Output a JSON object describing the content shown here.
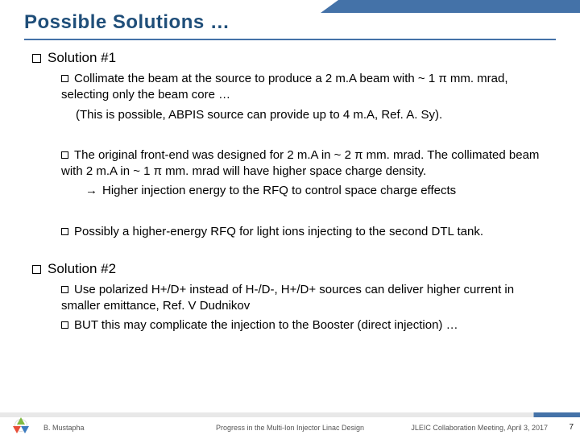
{
  "header": {
    "title": "Possible Solutions …",
    "bar_color": "#4472a8",
    "title_color": "#1f4e79",
    "title_fontsize": 24
  },
  "body": {
    "fontsize_lvl1": 17,
    "fontsize_lvl2": 15,
    "bullet_border_color": "#000000",
    "arrow_glyph": "→",
    "items": [
      {
        "level": 1,
        "text": "Solution #1"
      },
      {
        "level": 2,
        "text": "Collimate the beam at the source to produce a 2 m.A beam with ~ 1 π mm. mrad, selecting only the beam core …"
      },
      {
        "level": "2cont",
        "text": "(This is possible, ABPIS source can provide up to 4 m.A, Ref. A. Sy)."
      },
      {
        "level": "gap"
      },
      {
        "level": 2,
        "text": "The original front-end was designed for 2 m.A in ~ 2 π mm. mrad. The collimated beam with 2 m.A in ~ 1 π mm. mrad will have higher space charge density."
      },
      {
        "level": "2arrow",
        "text": "Higher injection energy to the RFQ to control space charge effects"
      },
      {
        "level": "gap"
      },
      {
        "level": 2,
        "text": "Possibly a higher-energy RFQ for light ions injecting to the second DTL tank."
      },
      {
        "level": "gap-lg"
      },
      {
        "level": 1,
        "text": "Solution #2"
      },
      {
        "level": 2,
        "text": "Use polarized H+/D+ instead of H-/D-, H+/D+ sources can deliver higher current in smaller emittance, Ref. V Dudnikov"
      },
      {
        "level": 2,
        "text": "BUT this may complicate the injection to the Booster (direct injection) …"
      }
    ]
  },
  "footer": {
    "left": "B. Mustapha",
    "center": "Progress in the Multi-Ion Injector Linac Design",
    "right": "JLEIC Collaboration Meeting, April 3, 2017",
    "page": "7",
    "band_gray": "#e8e8e8",
    "band_accent": "#4472a8",
    "logo_colors": {
      "top": "#7fba42",
      "left": "#e84e38",
      "right": "#3b7bbf"
    }
  }
}
